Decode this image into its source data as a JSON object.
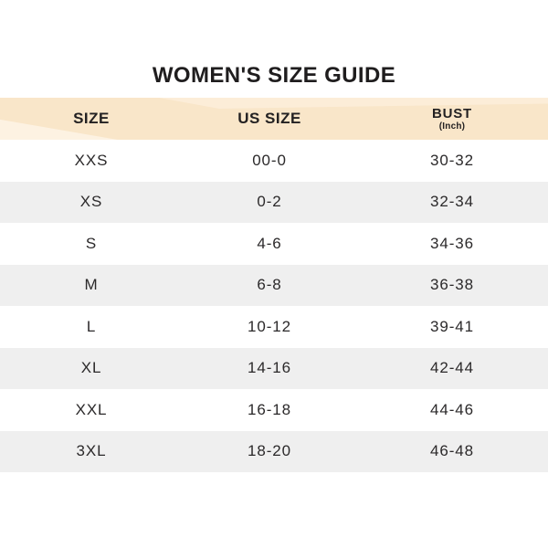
{
  "title": "WOMEN'S SIZE GUIDE",
  "table": {
    "header": {
      "background": "#f9e6c9",
      "columns": [
        {
          "label": "SIZE"
        },
        {
          "label": "US SIZE"
        },
        {
          "label": "BUST",
          "sublabel": "(Inch)"
        }
      ]
    },
    "stripe_color": "#efefef",
    "text_color": "#2b292a",
    "rows": [
      {
        "size": "XXS",
        "us_size": "00-0",
        "bust": "30-32"
      },
      {
        "size": "XS",
        "us_size": "0-2",
        "bust": "32-34"
      },
      {
        "size": "S",
        "us_size": "4-6",
        "bust": "34-36"
      },
      {
        "size": "M",
        "us_size": "6-8",
        "bust": "36-38"
      },
      {
        "size": "L",
        "us_size": "10-12",
        "bust": "39-41"
      },
      {
        "size": "XL",
        "us_size": "14-16",
        "bust": "42-44"
      },
      {
        "size": "XXL",
        "us_size": "16-18",
        "bust": "44-46"
      },
      {
        "size": "3XL",
        "us_size": "18-20",
        "bust": "46-48"
      }
    ]
  }
}
